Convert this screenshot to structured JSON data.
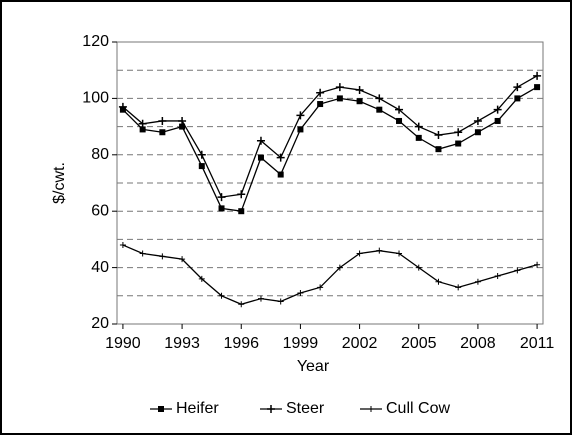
{
  "chart_data": {
    "type": "line",
    "xlabel": "Year",
    "ylabel": "$/cwt.",
    "x": [
      1990,
      1991,
      1992,
      1993,
      1994,
      1995,
      1996,
      1997,
      1998,
      1999,
      2000,
      2001,
      2002,
      2003,
      2004,
      2005,
      2006,
      2007,
      2008,
      2009,
      2010,
      2011
    ],
    "series": [
      {
        "name": "Heifer",
        "color": "#000000",
        "marker": "square",
        "values": [
          96,
          89,
          88,
          90,
          76,
          61,
          60,
          79,
          73,
          89,
          98,
          100,
          99,
          96,
          92,
          86,
          82,
          84,
          88,
          92,
          100,
          104
        ]
      },
      {
        "name": "Steer",
        "color": "#000000",
        "marker": "plus",
        "values": [
          97,
          91,
          92,
          92,
          80,
          65,
          66,
          85,
          79,
          94,
          102,
          104,
          103,
          100,
          96,
          90,
          87,
          88,
          92,
          96,
          104,
          108
        ]
      },
      {
        "name": "Cull Cow",
        "color": "#000000",
        "marker": "tick",
        "values": [
          48,
          45,
          44,
          43,
          36,
          30,
          27,
          29,
          28,
          31,
          33,
          40,
          45,
          46,
          45,
          40,
          35,
          33,
          35,
          37,
          39,
          41
        ]
      }
    ],
    "xlim": [
      1989.7,
      2011.3
    ],
    "xticks": [
      1990,
      1993,
      1996,
      1999,
      2002,
      2005,
      2008,
      2011
    ],
    "ylim": [
      20,
      120
    ],
    "yticks": [
      20,
      40,
      60,
      80,
      100,
      120
    ],
    "grid_lines": [
      30,
      40,
      50,
      60,
      70,
      80,
      90,
      100,
      110
    ],
    "grid": true,
    "legend": "bottom"
  }
}
